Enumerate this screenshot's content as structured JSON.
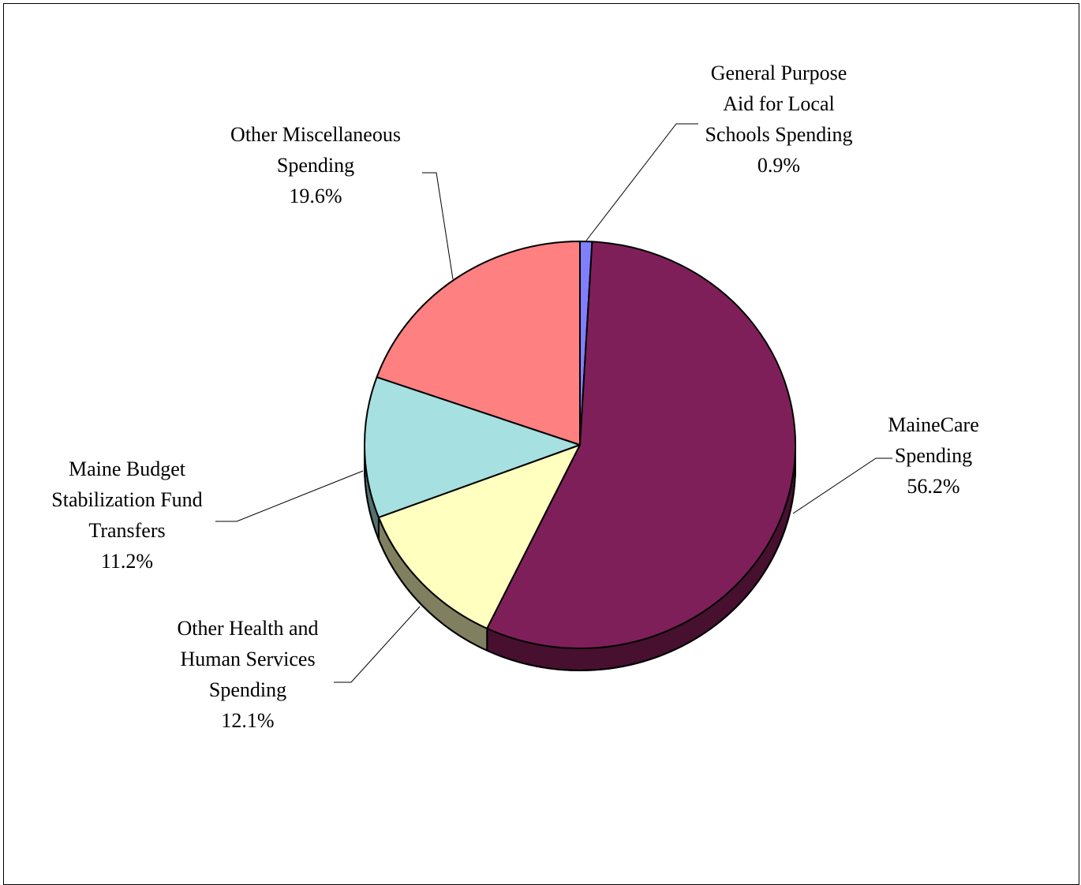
{
  "chart_data": {
    "type": "pie",
    "title": "",
    "slices": [
      {
        "label": [
          "General Purpose",
          "Aid for Local",
          "Schools Spending"
        ],
        "pct_label": "0.9%",
        "value": 0.9,
        "color": "#8080ff",
        "side_color": "#404080"
      },
      {
        "label": [
          "MaineCare",
          "Spending"
        ],
        "pct_label": "56.2%",
        "value": 56.2,
        "color": "#7f1f5a",
        "side_color": "#47102f"
      },
      {
        "label": [
          "Other Health and",
          "Human Services",
          "Spending"
        ],
        "pct_label": "12.1%",
        "value": 12.1,
        "color": "#ffffc0",
        "side_color": "#808060"
      },
      {
        "label": [
          "Maine Budget",
          "Stabilization Fund",
          "Transfers"
        ],
        "pct_label": "11.2%",
        "value": 11.2,
        "color": "#a6e0e0",
        "side_color": "#537070"
      },
      {
        "label": [
          "Other Miscellaneous",
          "Spending"
        ],
        "pct_label": "19.6%",
        "value": 19.6,
        "color": "#ff8080",
        "side_color": "#804040"
      }
    ],
    "start_angle": "top (12 o'clock)",
    "direction": "clockwise",
    "style": "3d-tilted",
    "legend": "none"
  }
}
